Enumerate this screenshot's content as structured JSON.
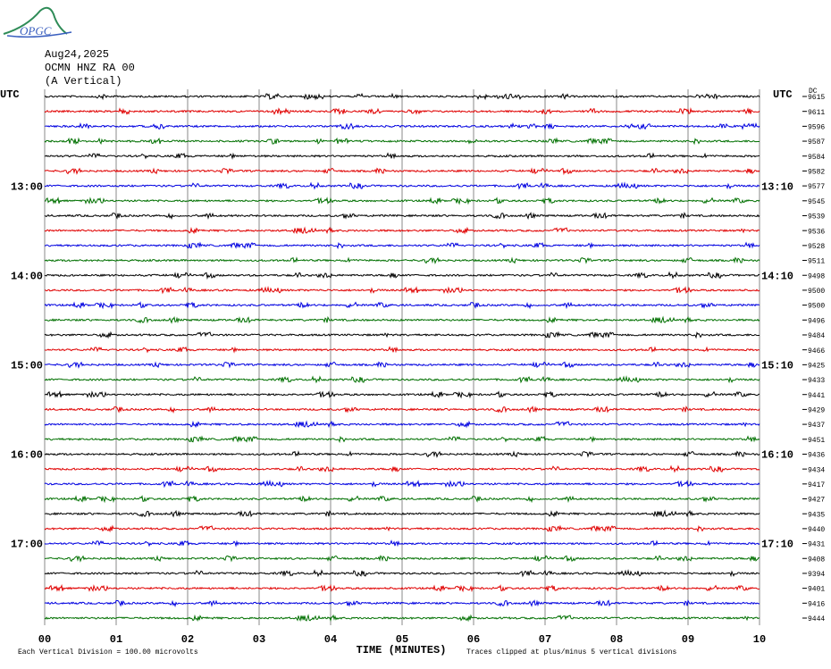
{
  "header": {
    "logo": "OPGC",
    "date": "Aug24,2025",
    "station": "OCMN HNZ RA 00",
    "component": "(A Vertical)",
    "utc_left": "UTC",
    "utc_right": "UTC",
    "dc_title": "DC"
  },
  "rows": [
    "9615",
    "9611",
    "9596",
    "9587",
    "9584",
    "9582",
    "9577",
    "9545",
    "9539",
    "9536",
    "9528",
    "9511",
    "9498",
    "9500",
    "9500",
    "9496",
    "9484",
    "9466",
    "9425",
    "9433",
    "9441",
    "9429",
    "9437",
    "9451",
    "9436",
    "9434",
    "9417",
    "9427",
    "9435",
    "9440",
    "9431",
    "9408",
    "9394",
    "9401",
    "9416",
    "9444"
  ],
  "hour_labels": [
    {
      "left": "13:00",
      "right": "13:10"
    },
    {
      "left": "14:00",
      "right": "14:10"
    },
    {
      "left": "15:00",
      "right": "15:10"
    },
    {
      "left": "16:00",
      "right": "16:10"
    },
    {
      "left": "17:00",
      "right": "17:10"
    }
  ],
  "x_ticks": [
    "00",
    "01",
    "02",
    "03",
    "04",
    "05",
    "06",
    "07",
    "08",
    "09",
    "10"
  ],
  "x_axis_label": "TIME (MINUTES)",
  "footer": {
    "scale_note": "Each Vertical Division =  100.00 microvolts",
    "clip_note": "Traces clipped at plus/minus 5 vertical divisions"
  }
}
